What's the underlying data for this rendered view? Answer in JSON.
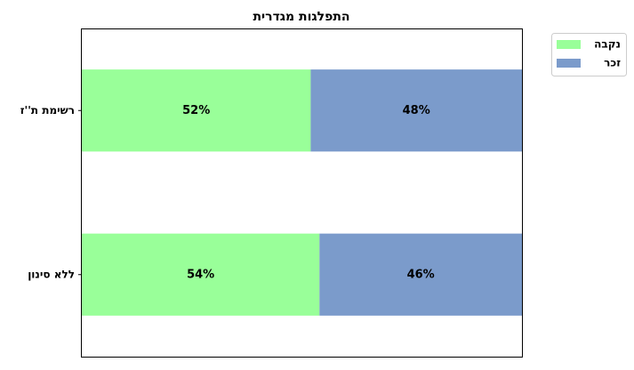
{
  "chart_data": {
    "type": "bar",
    "orientation": "horizontal",
    "stacked": true,
    "title": "התפלגות מגדרית",
    "categories": [
      "רשימת ת''ז",
      "ללא סינון"
    ],
    "series": [
      {
        "name": "נקבה",
        "color": "#99ff99",
        "values": [
          52,
          54
        ]
      },
      {
        "name": "זכר",
        "color": "#7b9bcb",
        "values": [
          48,
          46
        ]
      }
    ],
    "value_labels": [
      [
        "52%",
        "54%"
      ],
      [
        "48%",
        "46%"
      ]
    ],
    "xlim": [
      0,
      100
    ],
    "xticks": "none",
    "grid": false,
    "legend_position": "outside-top-right"
  }
}
